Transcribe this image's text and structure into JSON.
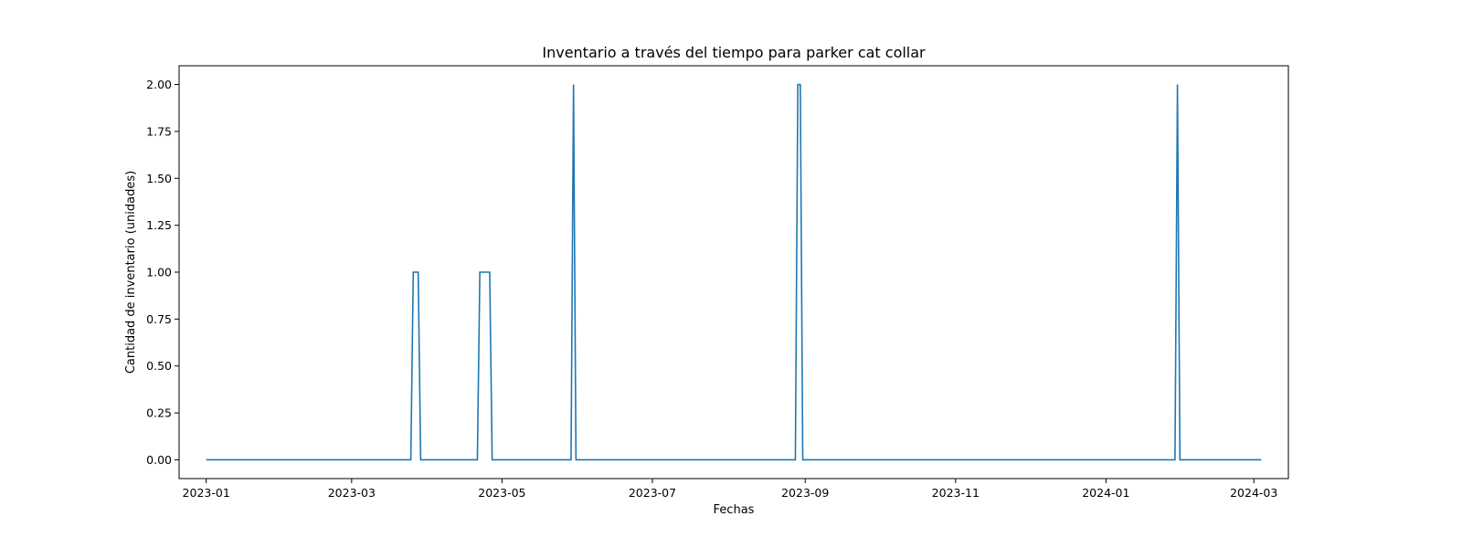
{
  "chart_data": {
    "type": "line",
    "title": "Inventario a través del tiempo para parker cat collar",
    "xlabel": "Fechas",
    "ylabel": "Cantidad de inventario (unidades)",
    "x_axis": "date",
    "xlim": [
      "2022-12-21",
      "2024-03-15"
    ],
    "ylim": [
      -0.1,
      2.1
    ],
    "grid": false,
    "x_ticks": [
      "2023-01",
      "2023-03",
      "2023-05",
      "2023-07",
      "2023-09",
      "2023-11",
      "2024-01",
      "2024-03"
    ],
    "y_ticks": [
      "0.00",
      "0.25",
      "0.50",
      "0.75",
      "1.00",
      "1.25",
      "1.50",
      "1.75",
      "2.00"
    ],
    "color": "#1f77b4",
    "series": [
      {
        "points": [
          {
            "x": "2023-01-01",
            "y": 0
          },
          {
            "x": "2023-03-25",
            "y": 0
          },
          {
            "x": "2023-03-26",
            "y": 1
          },
          {
            "x": "2023-03-28",
            "y": 1
          },
          {
            "x": "2023-03-29",
            "y": 0
          },
          {
            "x": "2023-04-21",
            "y": 0
          },
          {
            "x": "2023-04-22",
            "y": 1
          },
          {
            "x": "2023-04-26",
            "y": 1
          },
          {
            "x": "2023-04-27",
            "y": 0
          },
          {
            "x": "2023-05-29",
            "y": 0
          },
          {
            "x": "2023-05-30",
            "y": 2
          },
          {
            "x": "2023-05-31",
            "y": 0
          },
          {
            "x": "2023-08-28",
            "y": 0
          },
          {
            "x": "2023-08-29",
            "y": 2
          },
          {
            "x": "2023-08-30",
            "y": 2
          },
          {
            "x": "2023-08-31",
            "y": 0
          },
          {
            "x": "2024-01-29",
            "y": 0
          },
          {
            "x": "2024-01-30",
            "y": 2
          },
          {
            "x": "2024-01-31",
            "y": 0
          },
          {
            "x": "2024-03-04",
            "y": 0
          }
        ]
      }
    ]
  }
}
